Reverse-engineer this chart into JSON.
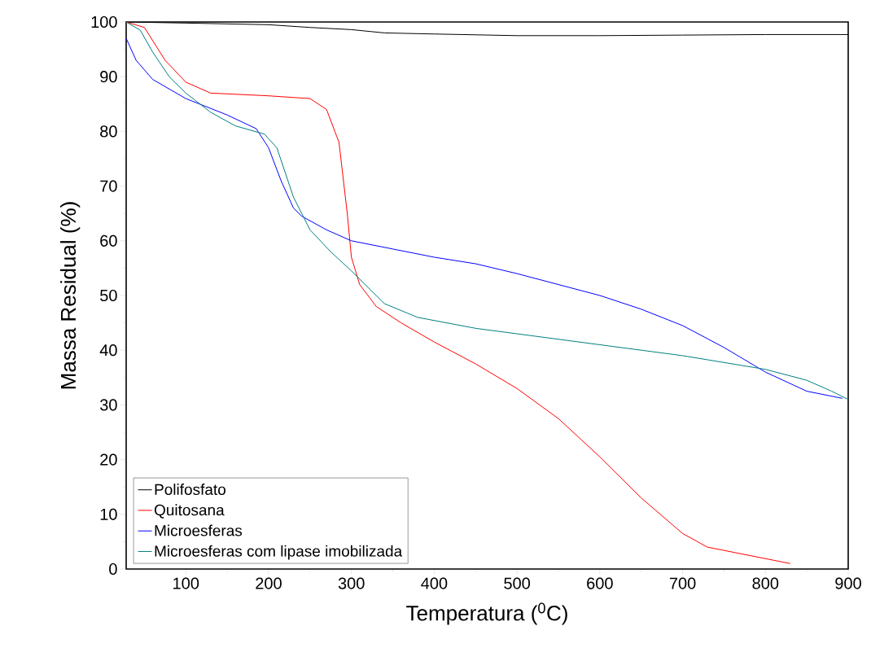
{
  "chart_data": {
    "type": "line",
    "xlabel": "Temperatura ($^{0}$C)",
    "ylabel": "Massa Residual (%)",
    "xlim": [
      28,
      900
    ],
    "ylim": [
      0,
      100
    ],
    "xticks": [
      100,
      200,
      300,
      400,
      500,
      600,
      700,
      800,
      900
    ],
    "yticks": [
      0,
      10,
      20,
      30,
      40,
      50,
      60,
      70,
      80,
      90,
      100
    ],
    "legend": "bottom left",
    "grid": false,
    "marker": "none",
    "line_style": "solid",
    "series": [
      {
        "name": "Polifosfato",
        "color": "#000000",
        "x": [
          28,
          100,
          200,
          250,
          300,
          340,
          400,
          500,
          600,
          700,
          800,
          900
        ],
        "values": [
          100,
          99.8,
          99.5,
          99,
          98.6,
          98,
          97.8,
          97.5,
          97.5,
          97.6,
          97.7,
          97.7
        ]
      },
      {
        "name": "Quitosana",
        "color": "#ff0000",
        "x": [
          28,
          50,
          75,
          100,
          130,
          200,
          250,
          270,
          285,
          295,
          300,
          310,
          330,
          360,
          400,
          450,
          500,
          550,
          600,
          650,
          700,
          730,
          780,
          830
        ],
        "values": [
          100,
          99,
          93,
          89,
          87,
          86.5,
          86,
          84,
          78,
          65,
          57,
          52,
          48,
          45,
          41.5,
          37.5,
          33,
          27.5,
          20.5,
          13,
          6.5,
          4,
          2.5,
          1
        ]
      },
      {
        "name": "Microesferas",
        "color": "#0000ff",
        "x": [
          28,
          40,
          60,
          100,
          150,
          185,
          200,
          215,
          230,
          240,
          270,
          300,
          350,
          400,
          450,
          500,
          550,
          600,
          650,
          700,
          750,
          800,
          850,
          893
        ],
        "values": [
          97,
          93,
          89.5,
          86,
          83,
          80.5,
          77,
          71,
          66,
          64.5,
          62,
          60,
          58.5,
          57,
          55.8,
          54,
          52,
          50,
          47.5,
          44.5,
          40.5,
          36,
          32.5,
          31.2
        ]
      },
      {
        "name": "Microesferas com lipase imobilizada",
        "color": "#008080",
        "x": [
          28,
          45,
          60,
          80,
          100,
          130,
          160,
          195,
          210,
          230,
          250,
          275,
          300,
          340,
          380,
          450,
          500,
          600,
          700,
          800,
          850,
          880,
          900
        ],
        "values": [
          100,
          98.5,
          94.5,
          90,
          87,
          83.5,
          81,
          79.5,
          77,
          68,
          62,
          58,
          54.5,
          48.5,
          46,
          44,
          43,
          41,
          39,
          36.5,
          34.5,
          32.5,
          31
        ]
      }
    ]
  }
}
